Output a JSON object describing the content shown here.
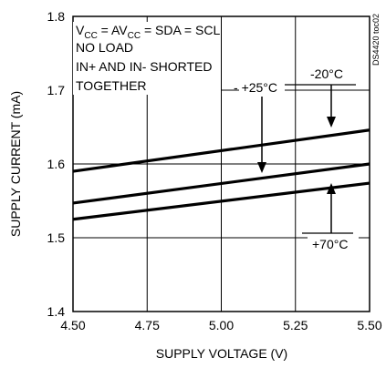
{
  "chart_data": {
    "type": "line",
    "xlabel": "SUPPLY VOLTAGE (V)",
    "ylabel": "SUPPLY CURRENT (mA)",
    "xlim": [
      4.5,
      5.5
    ],
    "ylim": [
      1.4,
      1.8
    ],
    "x_ticks": [
      "4.50",
      "4.75",
      "5.00",
      "5.25",
      "5.50"
    ],
    "y_ticks": [
      "1.4",
      "1.5",
      "1.6",
      "1.7",
      "1.8"
    ],
    "grid": true,
    "series": [
      {
        "name": "-20°C",
        "x": [
          4.5,
          5.5
        ],
        "values": [
          1.59,
          1.646
        ]
      },
      {
        "name": "+25°C",
        "x": [
          4.5,
          5.5
        ],
        "values": [
          1.547,
          1.6
        ]
      },
      {
        "name": "+70°C",
        "x": [
          4.5,
          5.5
        ],
        "values": [
          1.525,
          1.574
        ]
      }
    ],
    "conditions": {
      "line1_main": "V",
      "line1_sub1": "CC",
      "line1_mid": " = AV",
      "line1_sub2": "CC",
      "line1_end": " = SDA = SCL",
      "line2": "NO LOAD",
      "line3": "IN+ AND IN- SHORTED",
      "line4": "TOGETHER"
    },
    "figure_id": "DS4420 toc02"
  }
}
